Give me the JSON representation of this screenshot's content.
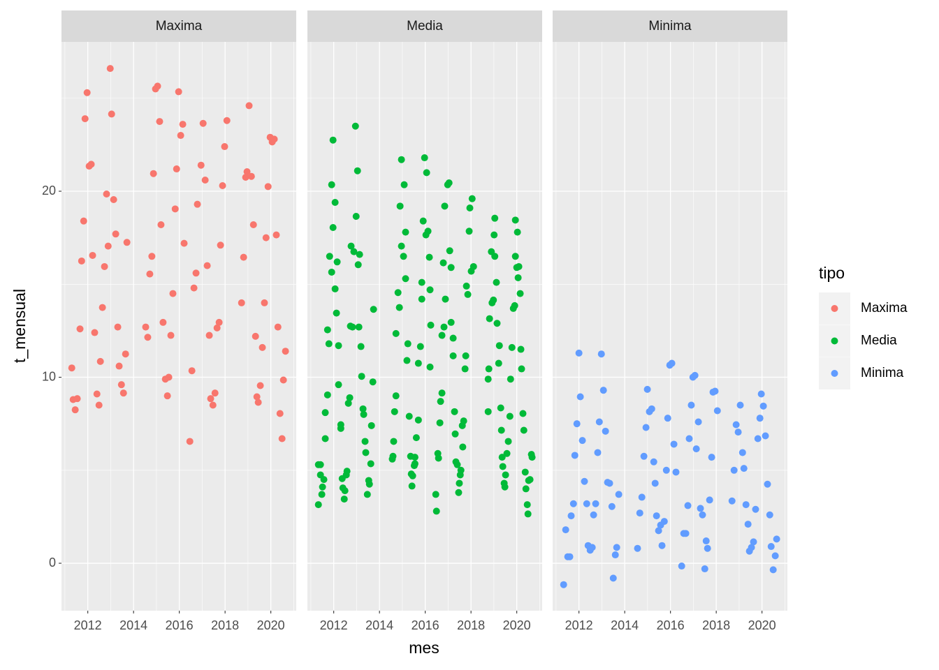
{
  "chart_data": {
    "type": "scatter",
    "xlabel": "mes",
    "ylabel": "t_mensual",
    "legend_title": "tipo",
    "legend": "right",
    "grid": true,
    "xlim": [
      2010.85,
      2021.11
    ],
    "ylim": [
      -2.55,
      28.03
    ],
    "xticks": [
      2012,
      2014,
      2016,
      2018,
      2020
    ],
    "yticks": [
      0,
      10,
      20
    ],
    "series": [
      {
        "name": "Maxima",
        "color": "#F8766D",
        "x": [
          2011.3,
          2011.36,
          2011.45,
          2011.54,
          2011.66,
          2011.73,
          2011.82,
          2011.88,
          2011.97,
          2012.06,
          2012.15,
          2012.21,
          2012.3,
          2012.4,
          2012.49,
          2012.55,
          2012.64,
          2012.73,
          2012.82,
          2012.89,
          2012.98,
          2013.04,
          2013.13,
          2013.22,
          2013.31,
          2013.37,
          2013.47,
          2013.56,
          2013.65,
          2013.71,
          2014.53,
          2014.62,
          2014.71,
          2014.8,
          2014.87,
          2014.96,
          2015.05,
          2015.14,
          2015.2,
          2015.29,
          2015.39,
          2015.48,
          2015.54,
          2015.63,
          2015.72,
          2015.82,
          2015.88,
          2015.97,
          2016.06,
          2016.15,
          2016.21,
          2016.46,
          2016.55,
          2016.64,
          2016.73,
          2016.79,
          2016.95,
          2017.04,
          2017.13,
          2017.22,
          2017.31,
          2017.37,
          2017.47,
          2017.56,
          2017.65,
          2017.74,
          2017.8,
          2017.89,
          2017.98,
          2018.08,
          2018.72,
          2018.81,
          2018.9,
          2018.96,
          2019.05,
          2019.15,
          2019.24,
          2019.33,
          2019.39,
          2019.45,
          2019.54,
          2019.63,
          2019.72,
          2019.79,
          2019.88,
          2019.97,
          2020.06,
          2020.15,
          2020.24,
          2020.31,
          2020.4,
          2020.49,
          2020.55,
          2020.64
        ],
        "values": [
          10.5,
          8.8,
          8.25,
          8.85,
          12.6,
          16.25,
          18.4,
          23.9,
          25.3,
          21.35,
          21.45,
          16.55,
          12.4,
          9.1,
          8.5,
          10.85,
          13.75,
          15.95,
          19.85,
          17.05,
          26.6,
          24.15,
          19.55,
          17.7,
          12.7,
          10.6,
          9.6,
          9.15,
          11.25,
          17.25,
          12.7,
          12.15,
          15.55,
          16.5,
          20.95,
          25.5,
          25.65,
          23.75,
          18.2,
          12.95,
          9.9,
          9.0,
          10.0,
          12.25,
          14.5,
          19.05,
          21.2,
          25.35,
          23.0,
          23.6,
          17.2,
          6.55,
          10.35,
          14.8,
          15.6,
          19.3,
          21.4,
          23.65,
          20.6,
          16.0,
          12.25,
          8.85,
          8.5,
          9.15,
          12.65,
          12.95,
          17.1,
          20.3,
          22.4,
          23.8,
          14.0,
          16.45,
          20.75,
          21.05,
          24.6,
          20.8,
          18.2,
          12.2,
          8.95,
          8.65,
          9.55,
          11.6,
          14.0,
          17.5,
          20.25,
          22.9,
          22.65,
          22.8,
          17.65,
          12.7,
          8.05,
          6.7,
          9.85,
          11.4
        ]
      },
      {
        "name": "Media",
        "color": "#00BA38",
        "x": [
          2011.33,
          2011.33,
          2011.42,
          2011.42,
          2011.48,
          2011.51,
          2011.57,
          2011.63,
          2011.63,
          2011.73,
          2011.73,
          2011.79,
          2011.82,
          2011.91,
          2011.91,
          2011.97,
          2011.97,
          2012.06,
          2012.06,
          2012.12,
          2012.15,
          2012.21,
          2012.21,
          2012.31,
          2012.31,
          2012.37,
          2012.4,
          2012.46,
          2012.49,
          2012.55,
          2012.58,
          2012.64,
          2012.7,
          2012.73,
          2012.76,
          2012.82,
          2012.88,
          2012.95,
          2012.98,
          2013.04,
          2013.07,
          2013.1,
          2013.13,
          2013.19,
          2013.22,
          2013.28,
          2013.31,
          2013.37,
          2013.4,
          2013.47,
          2013.53,
          2013.56,
          2013.62,
          2013.65,
          2013.71,
          2013.74,
          2014.56,
          2014.59,
          2014.62,
          2014.66,
          2014.72,
          2014.72,
          2014.81,
          2014.87,
          2014.9,
          2014.96,
          2014.96,
          2015.05,
          2015.08,
          2015.14,
          2015.14,
          2015.2,
          2015.24,
          2015.3,
          2015.36,
          2015.39,
          2015.42,
          2015.45,
          2015.52,
          2015.55,
          2015.55,
          2015.61,
          2015.7,
          2015.7,
          2015.79,
          2015.85,
          2015.85,
          2015.91,
          2015.97,
          2016.03,
          2016.06,
          2016.12,
          2016.18,
          2016.21,
          2016.21,
          2016.24,
          2016.46,
          2016.49,
          2016.55,
          2016.58,
          2016.64,
          2016.67,
          2016.73,
          2016.73,
          2016.79,
          2016.82,
          2016.85,
          2016.88,
          2016.98,
          2017.04,
          2017.07,
          2017.13,
          2017.13,
          2017.22,
          2017.22,
          2017.28,
          2017.31,
          2017.34,
          2017.4,
          2017.46,
          2017.49,
          2017.53,
          2017.56,
          2017.62,
          2017.64,
          2017.68,
          2017.74,
          2017.77,
          2017.8,
          2017.86,
          2017.92,
          2017.95,
          2018.01,
          2018.05,
          2018.11,
          2018.75,
          2018.75,
          2018.78,
          2018.81,
          2018.89,
          2018.92,
          2018.98,
          2019.01,
          2019.04,
          2019.04,
          2019.11,
          2019.14,
          2019.21,
          2019.24,
          2019.3,
          2019.33,
          2019.36,
          2019.39,
          2019.45,
          2019.48,
          2019.51,
          2019.57,
          2019.63,
          2019.7,
          2019.73,
          2019.79,
          2019.85,
          2019.91,
          2019.94,
          2019.94,
          2020.0,
          2020.03,
          2020.06,
          2020.09,
          2020.15,
          2020.18,
          2020.21,
          2020.27,
          2020.31,
          2020.37,
          2020.4,
          2020.46,
          2020.49,
          2020.52,
          2020.58,
          2020.64,
          2020.67
        ],
        "values": [
          3.15,
          5.3,
          5.3,
          4.75,
          3.7,
          4.1,
          4.5,
          6.7,
          8.1,
          9.05,
          12.55,
          11.8,
          16.5,
          15.65,
          20.35,
          18.05,
          22.75,
          19.4,
          14.75,
          13.45,
          16.2,
          9.6,
          11.7,
          7.45,
          7.25,
          4.55,
          4.05,
          3.45,
          3.9,
          4.75,
          4.95,
          8.6,
          8.9,
          12.75,
          17.05,
          12.7,
          16.75,
          23.5,
          18.65,
          21.1,
          16.05,
          12.7,
          16.6,
          11.65,
          10.05,
          8.3,
          8.0,
          6.55,
          5.95,
          3.7,
          4.45,
          4.25,
          5.35,
          7.4,
          9.75,
          13.65,
          5.6,
          5.75,
          6.55,
          8.15,
          9.0,
          12.35,
          14.55,
          13.75,
          19.2,
          17.05,
          21.7,
          16.5,
          20.35,
          17.8,
          15.3,
          10.9,
          11.8,
          7.9,
          5.75,
          4.8,
          4.15,
          4.7,
          5.25,
          5.7,
          5.35,
          6.75,
          7.7,
          10.75,
          11.65,
          14.2,
          15.1,
          18.4,
          21.8,
          17.65,
          21.0,
          17.85,
          16.45,
          14.7,
          10.55,
          12.8,
          3.7,
          2.8,
          5.9,
          5.65,
          7.55,
          8.7,
          9.15,
          12.25,
          16.15,
          12.7,
          19.2,
          14.2,
          20.35,
          20.45,
          16.8,
          15.9,
          12.95,
          12.1,
          11.15,
          8.15,
          6.95,
          5.45,
          5.3,
          3.8,
          4.3,
          4.75,
          5.0,
          7.4,
          6.25,
          7.65,
          10.45,
          11.15,
          14.9,
          14.45,
          17.85,
          19.1,
          15.7,
          19.6,
          15.95,
          8.15,
          9.9,
          10.45,
          13.15,
          16.75,
          14.0,
          14.15,
          17.65,
          18.55,
          16.5,
          15.1,
          12.9,
          10.75,
          11.7,
          8.35,
          7.15,
          5.7,
          5.2,
          4.3,
          4.1,
          4.75,
          5.9,
          6.55,
          7.9,
          9.9,
          11.6,
          13.7,
          13.85,
          18.45,
          16.5,
          15.9,
          17.8,
          15.35,
          15.95,
          14.5,
          11.5,
          10.45,
          8.05,
          7.15,
          4.9,
          4.0,
          3.15,
          2.65,
          4.45,
          4.5,
          5.85,
          5.7
        ]
      },
      {
        "name": "Minima",
        "color": "#619CFF",
        "x": [
          2011.33,
          2011.42,
          2011.51,
          2011.6,
          2011.66,
          2011.76,
          2011.82,
          2011.91,
          2012.0,
          2012.06,
          2012.15,
          2012.24,
          2012.34,
          2012.4,
          2012.49,
          2012.52,
          2012.58,
          2012.64,
          2012.73,
          2012.82,
          2012.89,
          2012.98,
          2013.07,
          2013.16,
          2013.25,
          2013.34,
          2013.44,
          2013.5,
          2013.59,
          2013.65,
          2013.74,
          2014.56,
          2014.66,
          2014.75,
          2014.84,
          2014.93,
          2014.99,
          2015.08,
          2015.18,
          2015.27,
          2015.33,
          2015.39,
          2015.48,
          2015.57,
          2015.63,
          2015.73,
          2015.82,
          2015.88,
          2015.97,
          2016.06,
          2016.15,
          2016.24,
          2016.49,
          2016.58,
          2016.67,
          2016.76,
          2016.82,
          2016.91,
          2016.98,
          2017.07,
          2017.13,
          2017.22,
          2017.31,
          2017.4,
          2017.5,
          2017.56,
          2017.62,
          2017.71,
          2017.8,
          2017.86,
          2017.95,
          2018.05,
          2018.69,
          2018.78,
          2018.87,
          2018.96,
          2019.05,
          2019.15,
          2019.21,
          2019.3,
          2019.39,
          2019.45,
          2019.54,
          2019.63,
          2019.72,
          2019.82,
          2019.91,
          2019.97,
          2020.06,
          2020.15,
          2020.24,
          2020.34,
          2020.4,
          2020.49,
          2020.58,
          2020.64
        ],
        "values": [
          -1.15,
          1.8,
          0.35,
          0.35,
          2.55,
          3.2,
          5.8,
          7.5,
          11.3,
          8.95,
          6.6,
          4.4,
          3.2,
          0.95,
          0.7,
          0.8,
          0.85,
          2.6,
          3.2,
          5.95,
          7.6,
          11.25,
          9.3,
          7.1,
          4.35,
          4.3,
          3.05,
          -0.8,
          0.45,
          0.85,
          3.7,
          0.8,
          2.7,
          3.55,
          5.75,
          7.3,
          9.35,
          8.15,
          8.3,
          5.45,
          4.3,
          2.55,
          1.75,
          2.05,
          0.95,
          2.25,
          5.0,
          7.8,
          10.65,
          10.75,
          6.4,
          4.9,
          -0.15,
          1.6,
          1.6,
          3.1,
          6.7,
          8.5,
          10.0,
          10.1,
          6.15,
          7.6,
          2.95,
          2.6,
          -0.3,
          1.2,
          0.8,
          3.4,
          5.7,
          9.2,
          9.25,
          8.2,
          3.35,
          5.0,
          7.45,
          7.05,
          8.5,
          5.95,
          5.1,
          3.15,
          2.1,
          0.65,
          0.85,
          1.15,
          2.9,
          6.7,
          7.8,
          9.1,
          8.45,
          6.85,
          4.25,
          2.6,
          0.9,
          -0.35,
          0.4,
          1.3
        ]
      }
    ]
  }
}
